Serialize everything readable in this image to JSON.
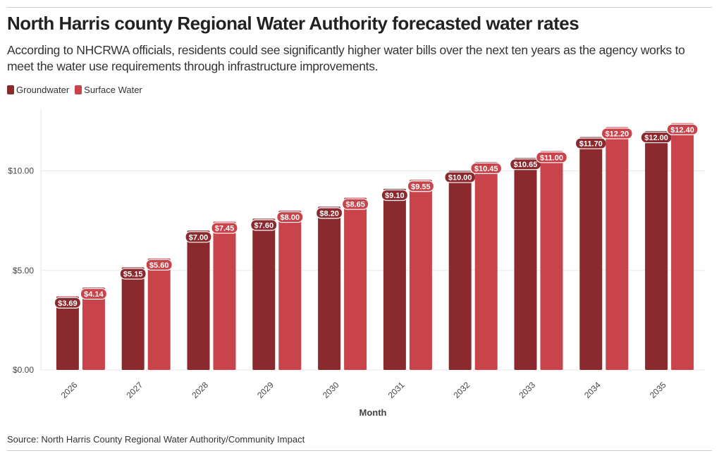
{
  "header": {
    "title": "North Harris county Regional Water Authority forecasted water rates",
    "subtitle": "According to NHCRWA officials, residents could see significantly higher water bills over the next ten years as the agency works to meet the water use requirements through infrastructure improvements."
  },
  "footer": {
    "source": "Source: North Harris County Regional Water Authority/Community Impact"
  },
  "chart_data": {
    "type": "bar",
    "title": "North Harris county Regional Water Authority forecasted water rates",
    "xlabel": "Month",
    "ylabel": "",
    "ylim": [
      0,
      13
    ],
    "yticks": [
      0,
      5,
      10
    ],
    "ytick_labels": [
      "$0.00",
      "$5.00",
      "$10.00"
    ],
    "legend_placement": "top-left",
    "grid": true,
    "categories": [
      "2026",
      "2027",
      "2028",
      "2029",
      "2030",
      "2031",
      "2032",
      "2033",
      "2034",
      "2035"
    ],
    "series": [
      {
        "name": "Groundwater",
        "color": "#8b2a2e",
        "values": [
          3.69,
          5.15,
          7.0,
          7.6,
          8.2,
          9.1,
          10.0,
          10.65,
          11.7,
          12.0
        ],
        "labels": [
          "$3.69",
          "$5.15",
          "$7.00",
          "$7.60",
          "$8.20",
          "$9.10",
          "$10.00",
          "$10.65",
          "$11.70",
          "$12.00"
        ]
      },
      {
        "name": "Surface Water",
        "color": "#c9444a",
        "values": [
          4.14,
          5.6,
          7.45,
          8.0,
          8.65,
          9.55,
          10.45,
          11.0,
          12.2,
          12.4
        ],
        "labels": [
          "$4.14",
          "$5.60",
          "$7.45",
          "$8.00",
          "$8.65",
          "$9.55",
          "$10.45",
          "$11.00",
          "$12.20",
          "$12.40"
        ]
      }
    ]
  }
}
